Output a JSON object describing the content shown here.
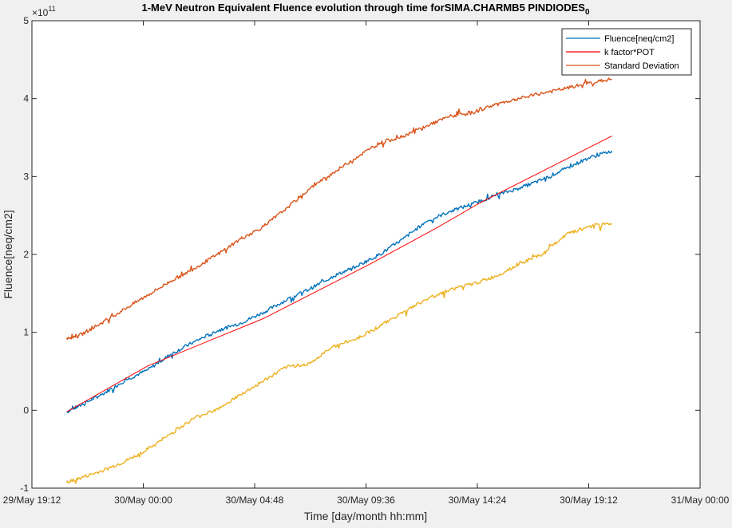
{
  "chart_data": {
    "type": "line",
    "title": "1-MeV Neutron Equivalent Fluence evolution through time forSIMA.CHARMB5 PINDIODES",
    "title_subscript": "0",
    "xlabel": "Time [day/month hh:mm]",
    "ylabel": "Fluence[neq/cm2]",
    "y_exponent_label": "×10",
    "y_exponent_value": "11",
    "xlim_hours_after_first_tick": [
      0,
      28.8
    ],
    "ylim": [
      -1,
      5
    ],
    "x_ticks": [
      {
        "value": 0,
        "label": "29/May 19:12"
      },
      {
        "value": 4.8,
        "label": "30/May 00:00"
      },
      {
        "value": 9.6,
        "label": "30/May 04:48"
      },
      {
        "value": 14.4,
        "label": "30/May 09:36"
      },
      {
        "value": 19.2,
        "label": "30/May 14:24"
      },
      {
        "value": 24.0,
        "label": "30/May 19:12"
      },
      {
        "value": 28.8,
        "label": "31/May 00:00"
      }
    ],
    "y_ticks": [
      {
        "value": -1,
        "label": "-1"
      },
      {
        "value": 0,
        "label": "0"
      },
      {
        "value": 1,
        "label": "1"
      },
      {
        "value": 2,
        "label": "2"
      },
      {
        "value": 3,
        "label": "3"
      },
      {
        "value": 4,
        "label": "4"
      },
      {
        "value": 5,
        "label": "5"
      }
    ],
    "grid": false,
    "legend_position": "top-right",
    "legend": [
      {
        "name": "Fluence[neq/cm2]",
        "color": "#0072BD"
      },
      {
        "name": "k factor*POT",
        "color": "#FF0000"
      },
      {
        "name": "Standard Deviation",
        "color": "#D95319"
      }
    ],
    "series": [
      {
        "name": "Fluence[neq/cm2]",
        "color": "#0072BD",
        "x": [
          1.5,
          2.0,
          3.0,
          4.0,
          5.0,
          6.0,
          7.0,
          8.0,
          9.0,
          10.0,
          11.0,
          12.0,
          13.0,
          14.0,
          15.0,
          16.0,
          17.0,
          18.0,
          19.0,
          20.0,
          21.0,
          22.0,
          23.0,
          24.0,
          25.0
        ],
        "y": [
          -0.02,
          0.05,
          0.2,
          0.38,
          0.52,
          0.72,
          0.88,
          1.02,
          1.12,
          1.26,
          1.42,
          1.56,
          1.72,
          1.85,
          2.0,
          2.2,
          2.42,
          2.55,
          2.65,
          2.76,
          2.85,
          2.96,
          3.1,
          3.24,
          3.33
        ]
      },
      {
        "name": "k factor*POT",
        "color": "#FF0000",
        "x": [
          1.5,
          5.0,
          10.0,
          14.6,
          17.5,
          19.3,
          25.0
        ],
        "y": [
          -0.02,
          0.57,
          1.18,
          1.88,
          2.35,
          2.66,
          3.52
        ]
      },
      {
        "name": "Standard Deviation",
        "color": "#D95319",
        "x": [
          1.5,
          2.0,
          3.0,
          4.0,
          5.0,
          6.0,
          7.0,
          8.0,
          9.0,
          10.0,
          11.0,
          12.0,
          13.0,
          14.0,
          15.0,
          16.0,
          17.0,
          18.0,
          19.0,
          20.0,
          21.0,
          22.0,
          23.0,
          24.0,
          25.0
        ],
        "y": [
          0.93,
          0.95,
          1.12,
          1.3,
          1.48,
          1.66,
          1.82,
          2.0,
          2.2,
          2.36,
          2.6,
          2.85,
          3.05,
          3.25,
          3.43,
          3.52,
          3.65,
          3.77,
          3.82,
          3.93,
          4.0,
          4.07,
          4.13,
          4.2,
          4.25
        ]
      },
      {
        "name": "",
        "color": "#EDB120",
        "x": [
          1.5,
          2.0,
          3.0,
          4.0,
          5.0,
          6.0,
          7.0,
          8.0,
          9.0,
          10.0,
          11.0,
          12.0,
          13.0,
          14.0,
          15.0,
          16.0,
          17.0,
          18.0,
          19.0,
          20.0,
          21.0,
          22.0,
          23.0,
          24.0,
          25.0
        ],
        "y": [
          -0.93,
          -0.88,
          -0.78,
          -0.66,
          -0.5,
          -0.3,
          -0.1,
          0.02,
          0.2,
          0.38,
          0.56,
          0.6,
          0.82,
          0.92,
          1.08,
          1.26,
          1.42,
          1.55,
          1.62,
          1.72,
          1.88,
          2.0,
          2.25,
          2.36,
          2.4
        ]
      }
    ]
  }
}
